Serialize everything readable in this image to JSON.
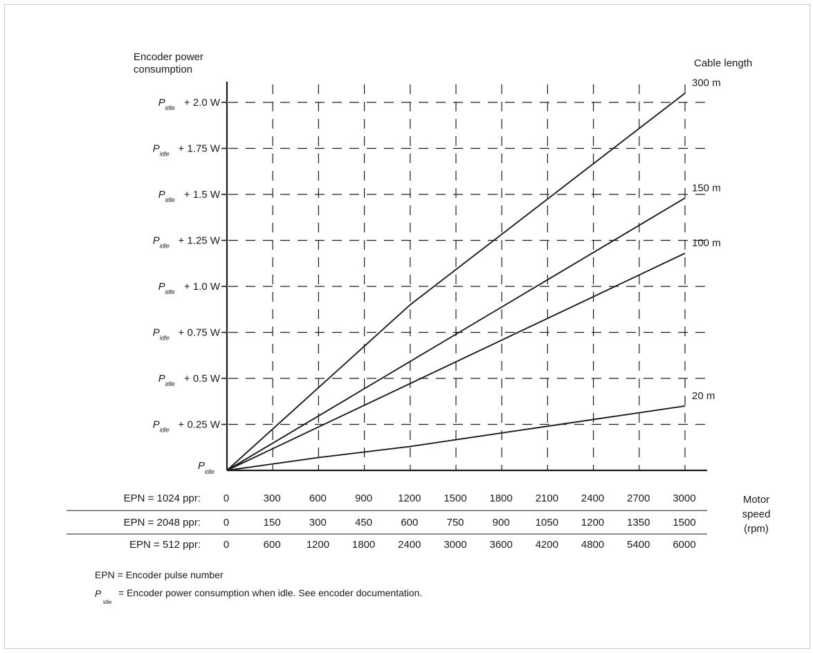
{
  "chart_data": {
    "type": "line",
    "ylabel": "Encoder power\nconsumption",
    "xlabel": "Motor\nspeed\n(rpm)",
    "legend_title": "Cable length",
    "grid": true,
    "xlim": [
      0,
      3000
    ],
    "ylim": [
      0,
      2.0
    ],
    "y_ticks": [
      {
        "value": 0,
        "symbol": "P",
        "subscript": "idle",
        "suffix": ""
      },
      {
        "value": 0.25,
        "symbol": "P",
        "subscript": "idle",
        "suffix": "+ 0.25 W"
      },
      {
        "value": 0.5,
        "symbol": "P",
        "subscript": "idle",
        "suffix": "+ 0.5 W"
      },
      {
        "value": 0.75,
        "symbol": "P",
        "subscript": "idle",
        "suffix": "+ 0.75 W"
      },
      {
        "value": 1.0,
        "symbol": "P",
        "subscript": "idle",
        "suffix": "+ 1.0 W"
      },
      {
        "value": 1.25,
        "symbol": "P",
        "subscript": "idle",
        "suffix": "+ 1.25 W"
      },
      {
        "value": 1.5,
        "symbol": "P",
        "subscript": "idle",
        "suffix": "+ 1.5 W"
      },
      {
        "value": 1.75,
        "symbol": "P",
        "subscript": "idle",
        "suffix": "+ 1.75 W"
      },
      {
        "value": 2.0,
        "symbol": "P",
        "subscript": "idle",
        "suffix": "+ 2.0 W"
      }
    ],
    "x_tick_rows": [
      {
        "label": "EPN = 1024 ppr:",
        "values": [
          "0",
          "300",
          "600",
          "900",
          "1200",
          "1500",
          "1800",
          "2100",
          "2400",
          "2700",
          "3000"
        ]
      },
      {
        "label": "EPN = 2048 ppr:",
        "values": [
          "0",
          "150",
          "300",
          "450",
          "600",
          "750",
          "900",
          "1050",
          "1200",
          "1350",
          "1500"
        ]
      },
      {
        "label": "EPN = 512 ppr:",
        "values": [
          "0",
          "600",
          "1200",
          "1800",
          "2400",
          "3000",
          "3600",
          "4200",
          "4800",
          "5400",
          "6000"
        ]
      }
    ],
    "x_grid": [
      0,
      300,
      600,
      900,
      1200,
      1500,
      1800,
      2100,
      2400,
      2700,
      3000
    ],
    "series": [
      {
        "name": "300 m",
        "points": [
          [
            0,
            0
          ],
          [
            1200,
            0.9
          ],
          [
            3000,
            2.05
          ]
        ]
      },
      {
        "name": "150 m",
        "points": [
          [
            0,
            0
          ],
          [
            3000,
            1.48
          ]
        ]
      },
      {
        "name": "100 m",
        "points": [
          [
            0,
            0
          ],
          [
            3000,
            1.18
          ]
        ]
      },
      {
        "name": "20 m",
        "points": [
          [
            0,
            0
          ],
          [
            600,
            0.07
          ],
          [
            1200,
            0.13
          ],
          [
            3000,
            0.35
          ]
        ]
      }
    ]
  },
  "footnotes": {
    "epn_definition": "EPN = Encoder pulse number",
    "pidle_symbol": "P",
    "pidle_subscript": "idle",
    "pidle_definition": "= Encoder power consumption when  idle. See encoder documentation."
  }
}
